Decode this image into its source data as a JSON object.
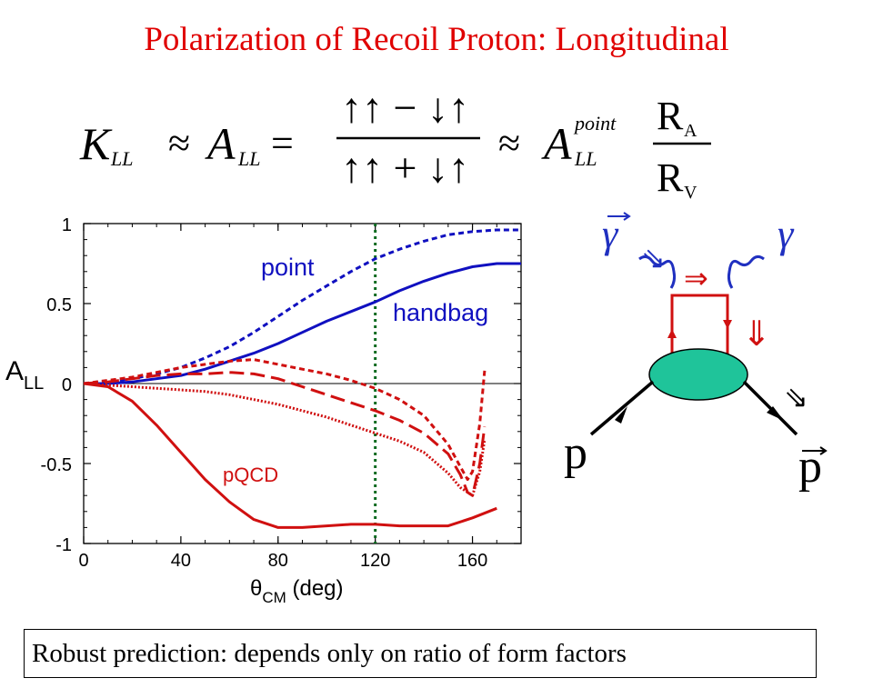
{
  "title": "Polarization of Recoil Proton:  Longitudinal",
  "equation": {
    "lhs": "K",
    "lhs_sub": "LL",
    "approx1": "≈",
    "a": "A",
    "a_sub": "LL",
    "equals": "=",
    "numerator": "↑↑ − ↓↑",
    "denominator": "↑↑ + ↓↑",
    "approx2": "≈",
    "a_point": "A",
    "a_point_sup": "point",
    "a_point_sub": "LL",
    "ra_num": "R",
    "ra_num_sub": "A",
    "rv_den": "R",
    "rv_den_sub": "V"
  },
  "footer": "Robust prediction:  depends only on ratio of form factors",
  "chart_data": {
    "type": "line",
    "xlabel": "θCM (deg)",
    "xlabel_main": "θ",
    "xlabel_sub": "CM",
    "xlabel_unit": " (deg)",
    "ylabel": "ALL",
    "ylabel_main": "A",
    "ylabel_sub": "LL",
    "xlim": [
      0,
      180
    ],
    "ylim": [
      -1,
      1
    ],
    "xticks": [
      "0",
      "40",
      "80",
      "120",
      "160"
    ],
    "yticks": [
      "1",
      "0.5",
      "0",
      "-0.5",
      "-1"
    ],
    "vertical_line_x": 120,
    "annotations": [
      {
        "text": "point",
        "color": "#1010c0"
      },
      {
        "text": "handbag",
        "color": "#1010c0"
      },
      {
        "text": "pQCD",
        "color": "#d01010"
      }
    ],
    "series": [
      {
        "color": "#1010c0",
        "style": "dashed",
        "x": [
          0,
          10,
          20,
          30,
          40,
          50,
          60,
          70,
          80,
          90,
          100,
          110,
          120,
          130,
          140,
          150,
          160,
          170,
          180
        ],
        "y": [
          0,
          0.01,
          0.03,
          0.06,
          0.1,
          0.16,
          0.23,
          0.32,
          0.42,
          0.52,
          0.61,
          0.7,
          0.78,
          0.84,
          0.89,
          0.93,
          0.95,
          0.96,
          0.96
        ]
      },
      {
        "color": "#1010c0",
        "style": "solid",
        "x": [
          0,
          10,
          20,
          30,
          40,
          50,
          60,
          70,
          80,
          90,
          100,
          110,
          120,
          130,
          140,
          150,
          160,
          170,
          180
        ],
        "y": [
          0,
          0.0,
          0.01,
          0.03,
          0.05,
          0.09,
          0.14,
          0.19,
          0.25,
          0.32,
          0.39,
          0.45,
          0.51,
          0.58,
          0.64,
          0.69,
          0.73,
          0.75,
          0.75
        ]
      },
      {
        "color": "#d01010",
        "style": "dashed",
        "x": [
          0,
          10,
          20,
          30,
          40,
          50,
          60,
          70,
          80,
          90,
          100,
          110,
          120,
          130,
          140,
          150,
          155,
          158,
          160,
          163,
          165
        ],
        "y": [
          0,
          0.02,
          0.04,
          0.07,
          0.1,
          0.12,
          0.14,
          0.15,
          0.12,
          0.09,
          0.06,
          0.02,
          -0.03,
          -0.1,
          -0.2,
          -0.38,
          -0.52,
          -0.6,
          -0.55,
          -0.25,
          0.08
        ]
      },
      {
        "color": "#d01010",
        "style": "longdash",
        "x": [
          0,
          10,
          20,
          30,
          40,
          50,
          60,
          70,
          80,
          90,
          100,
          110,
          120,
          130,
          140,
          150,
          155,
          158,
          160,
          163,
          165
        ],
        "y": [
          0,
          0.01,
          0.03,
          0.05,
          0.06,
          0.06,
          0.07,
          0.06,
          0.03,
          -0.02,
          -0.07,
          -0.12,
          -0.17,
          -0.23,
          -0.31,
          -0.44,
          -0.57,
          -0.68,
          -0.7,
          -0.5,
          -0.27
        ]
      },
      {
        "color": "#d01010",
        "style": "dotted",
        "x": [
          0,
          10,
          20,
          30,
          40,
          50,
          60,
          70,
          80,
          90,
          100,
          110,
          120,
          130,
          140,
          150,
          155,
          160,
          163,
          165
        ],
        "y": [
          0,
          -0.01,
          -0.02,
          -0.03,
          -0.04,
          -0.05,
          -0.07,
          -0.1,
          -0.13,
          -0.17,
          -0.21,
          -0.26,
          -0.31,
          -0.36,
          -0.43,
          -0.56,
          -0.65,
          -0.7,
          -0.55,
          -0.35
        ]
      },
      {
        "color": "#d01010",
        "style": "solid",
        "x": [
          0,
          10,
          20,
          30,
          40,
          50,
          60,
          70,
          80,
          90,
          100,
          110,
          120,
          130,
          140,
          150,
          160,
          170
        ],
        "y": [
          0,
          -0.02,
          -0.11,
          -0.26,
          -0.43,
          -0.6,
          -0.74,
          -0.85,
          -0.9,
          -0.9,
          -0.89,
          -0.88,
          -0.88,
          -0.89,
          -0.89,
          -0.89,
          -0.84,
          -0.78
        ]
      }
    ]
  },
  "diagram": {
    "gamma_in": "γ",
    "gamma_out": "γ",
    "p_in": "p",
    "p_out": "p",
    "arrow_right": "⇒",
    "arrow_down": "⇓",
    "arrow_in": "⇘",
    "arrow_out": "⇘"
  }
}
